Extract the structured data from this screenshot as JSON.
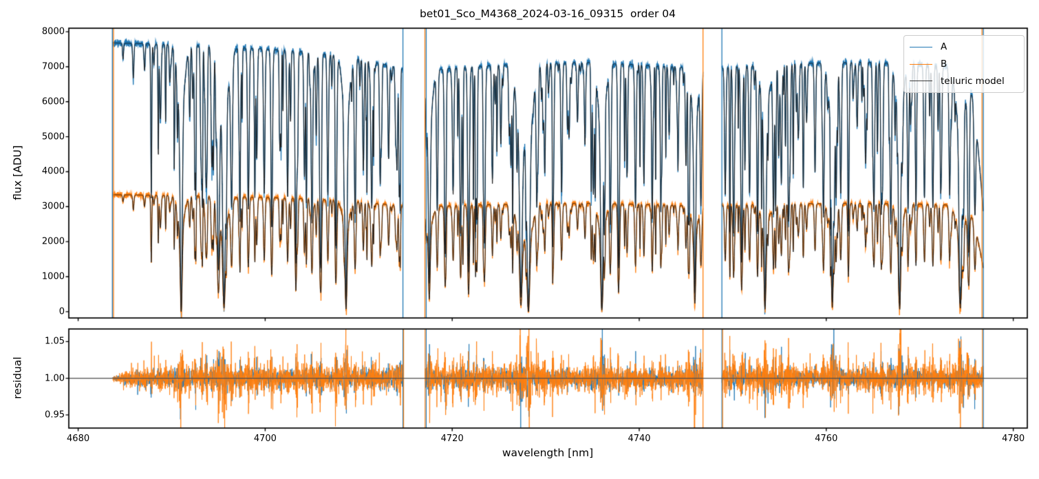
{
  "title": "bet01_Sco_M4368_2024-03-16_09315  order 04",
  "xlabel": "wavelength [nm]",
  "colors": {
    "A": "#1f77b4",
    "B": "#ff7f0e",
    "telluric": "#3d3d3d",
    "axhline": "#4d4d4d",
    "spine": "#000000",
    "background": "#ffffff"
  },
  "legend": {
    "entries": [
      {
        "label": "A",
        "color": "A"
      },
      {
        "label": "B",
        "color": "B"
      },
      {
        "label": "telluric model",
        "color": "telluric"
      }
    ],
    "position": "upper right"
  },
  "chart_data": [
    {
      "type": "line",
      "panel": "flux",
      "ylabel": "flux [ADU]",
      "ylim": [
        -180,
        8100
      ],
      "xlim": [
        4679.0,
        4781.5
      ],
      "grid": false,
      "yticks": [
        {
          "v": 0,
          "label": "0"
        },
        {
          "v": 1000,
          "label": "1000"
        },
        {
          "v": 2000,
          "label": "2000"
        },
        {
          "v": 3000,
          "label": "3000"
        },
        {
          "v": 4000,
          "label": "4000"
        },
        {
          "v": 5000,
          "label": "5000"
        },
        {
          "v": 6000,
          "label": "6000"
        },
        {
          "v": 7000,
          "label": "7000"
        },
        {
          "v": 8000,
          "label": "8000"
        }
      ],
      "series": [
        {
          "name": "A",
          "color": "#1f77b4",
          "continuum_adu": 7650
        },
        {
          "name": "B",
          "color": "#ff7f0e",
          "continuum_adu": 3320
        },
        {
          "name": "telluric model",
          "color": "#3d3d3d"
        }
      ],
      "segments": [
        {
          "start": 4683.7,
          "end": 4714.73
        },
        {
          "start": 4717.1,
          "end": 4746.82
        },
        {
          "start": 4748.84,
          "end": 4776.8
        }
      ],
      "continuum_A": [
        [
          4683.7,
          7680
        ],
        [
          4687,
          7660
        ],
        [
          4690,
          7630
        ],
        [
          4693,
          7600
        ],
        [
          4696,
          7560
        ],
        [
          4699,
          7520
        ],
        [
          4702,
          7470
        ],
        [
          4705,
          7400
        ],
        [
          4708,
          7310
        ],
        [
          4711,
          7170
        ],
        [
          4713.5,
          7020
        ],
        [
          4714.8,
          6930
        ],
        [
          4717.0,
          6880
        ],
        [
          4720,
          6960
        ],
        [
          4724,
          7030
        ],
        [
          4728,
          7080
        ],
        [
          4732,
          7110
        ],
        [
          4735,
          7130
        ],
        [
          4738,
          7080
        ],
        [
          4741,
          7030
        ],
        [
          4744,
          6990
        ],
        [
          4746.9,
          6950
        ],
        [
          4748.7,
          6970
        ],
        [
          4752,
          7030
        ],
        [
          4756,
          7080
        ],
        [
          4760,
          7110
        ],
        [
          4764,
          7130
        ],
        [
          4767,
          7100
        ],
        [
          4770,
          7060
        ],
        [
          4773,
          7010
        ],
        [
          4774.8,
          6860
        ],
        [
          4775.6,
          6200
        ],
        [
          4776.2,
          4800
        ],
        [
          4776.8,
          2850
        ]
      ],
      "b_to_a_ratio": 0.435,
      "telluric_lines": [
        [
          4684.8,
          0.06,
          0.08
        ],
        [
          4685.9,
          0.13,
          0.09
        ],
        [
          4687.1,
          0.1,
          0.09
        ],
        [
          4688.1,
          0.08,
          0.08
        ],
        [
          4688.8,
          0.28,
          0.11
        ],
        [
          4689.8,
          0.14,
          0.09
        ],
        [
          4691.02,
          1.0,
          0.15
        ],
        [
          4691.9,
          0.18,
          0.09
        ],
        [
          4693.2,
          0.22,
          0.1
        ],
        [
          4694.3,
          0.45,
          0.12
        ],
        [
          4695.0,
          0.82,
          0.17
        ],
        [
          4695.6,
          0.96,
          0.2
        ],
        [
          4696.4,
          0.55,
          0.14
        ],
        [
          4697.3,
          0.48,
          0.11
        ],
        [
          4698.2,
          0.6,
          0.12
        ],
        [
          4699.1,
          0.42,
          0.1
        ],
        [
          4699.9,
          0.55,
          0.11
        ],
        [
          4700.7,
          0.68,
          0.12
        ],
        [
          4701.6,
          0.38,
          0.1
        ],
        [
          4702.4,
          0.56,
          0.11
        ],
        [
          4703.3,
          0.62,
          0.12
        ],
        [
          4704.2,
          0.48,
          0.1
        ],
        [
          4705.0,
          0.66,
          0.12
        ],
        [
          4705.9,
          0.78,
          0.13
        ],
        [
          4706.7,
          0.52,
          0.11
        ],
        [
          4707.6,
          0.58,
          0.11
        ],
        [
          4708.65,
          0.97,
          0.15
        ],
        [
          4709.6,
          0.52,
          0.11
        ],
        [
          4710.5,
          0.44,
          0.1
        ],
        [
          4711.4,
          0.58,
          0.11
        ],
        [
          4712.3,
          0.48,
          0.1
        ],
        [
          4713.2,
          0.38,
          0.1
        ],
        [
          4714.1,
          0.32,
          0.1
        ],
        [
          4717.55,
          0.85,
          0.14
        ],
        [
          4718.4,
          0.58,
          0.11
        ],
        [
          4719.25,
          0.74,
          0.12
        ],
        [
          4720.1,
          0.52,
          0.11
        ],
        [
          4720.9,
          0.68,
          0.12
        ],
        [
          4721.75,
          0.84,
          0.13
        ],
        [
          4722.6,
          0.58,
          0.11
        ],
        [
          4723.45,
          0.72,
          0.12
        ],
        [
          4724.3,
          0.48,
          0.1
        ],
        [
          4725.2,
          0.32,
          0.1
        ],
        [
          4726.1,
          0.28,
          0.1
        ],
        [
          4727.35,
          0.92,
          0.19
        ],
        [
          4728.15,
          1.0,
          0.21
        ],
        [
          4729.05,
          0.55,
          0.11
        ],
        [
          4729.9,
          0.44,
          0.1
        ],
        [
          4730.8,
          0.58,
          0.11
        ],
        [
          4731.7,
          0.52,
          0.11
        ],
        [
          4732.5,
          0.3,
          0.1
        ],
        [
          4733.4,
          0.24,
          0.1
        ],
        [
          4734.2,
          0.33,
          0.1
        ],
        [
          4735.1,
          0.52,
          0.11
        ],
        [
          4736.0,
          0.98,
          0.17
        ],
        [
          4736.9,
          0.52,
          0.11
        ],
        [
          4737.8,
          0.62,
          0.12
        ],
        [
          4738.7,
          0.44,
          0.1
        ],
        [
          4739.6,
          0.58,
          0.11
        ],
        [
          4740.5,
          0.48,
          0.1
        ],
        [
          4741.4,
          0.54,
          0.11
        ],
        [
          4742.3,
          0.38,
          0.1
        ],
        [
          4743.2,
          0.28,
          0.1
        ],
        [
          4744.1,
          0.24,
          0.1
        ],
        [
          4745.0,
          0.4,
          0.1
        ],
        [
          4745.95,
          0.9,
          0.14
        ],
        [
          4746.6,
          0.55,
          0.12
        ],
        [
          4749.2,
          0.52,
          0.11
        ],
        [
          4750.1,
          0.68,
          0.12
        ],
        [
          4750.95,
          0.8,
          0.13
        ],
        [
          4751.8,
          0.52,
          0.11
        ],
        [
          4752.65,
          0.58,
          0.11
        ],
        [
          4753.45,
          0.97,
          0.15
        ],
        [
          4754.35,
          0.58,
          0.11
        ],
        [
          4755.2,
          0.48,
          0.1
        ],
        [
          4756.1,
          0.38,
          0.1
        ],
        [
          4757.0,
          0.28,
          0.1
        ],
        [
          4757.9,
          0.24,
          0.1
        ],
        [
          4758.8,
          0.44,
          0.1
        ],
        [
          4759.7,
          0.62,
          0.12
        ],
        [
          4760.65,
          0.95,
          0.15
        ],
        [
          4761.55,
          0.52,
          0.11
        ],
        [
          4762.4,
          0.32,
          0.1
        ],
        [
          4763.3,
          0.24,
          0.1
        ],
        [
          4764.2,
          0.38,
          0.1
        ],
        [
          4765.1,
          0.58,
          0.11
        ],
        [
          4766.0,
          0.52,
          0.11
        ],
        [
          4766.9,
          0.64,
          0.12
        ],
        [
          4767.85,
          0.97,
          0.15
        ],
        [
          4768.75,
          0.58,
          0.11
        ],
        [
          4769.6,
          0.48,
          0.1
        ],
        [
          4770.5,
          0.54,
          0.11
        ],
        [
          4771.4,
          0.58,
          0.11
        ],
        [
          4772.3,
          0.44,
          0.1
        ],
        [
          4773.2,
          0.52,
          0.11
        ],
        [
          4774.35,
          0.95,
          0.19
        ],
        [
          4775.2,
          0.68,
          0.13
        ],
        [
          4775.9,
          0.5,
          0.12
        ]
      ],
      "filler_lines": {
        "seed": 20240316,
        "per_segment": 72,
        "ranges": [
          [
            4687.5,
            4714.5
          ],
          [
            4717.2,
            4746.4
          ],
          [
            4748.9,
            4775.9
          ]
        ],
        "depth_max": 0.55,
        "width_range": [
          0.04,
          0.09
        ]
      },
      "edge_spikes": [
        {
          "w": 4683.66,
          "series": "A"
        },
        {
          "w": 4683.78,
          "series": "B"
        },
        {
          "w": 4714.73,
          "series": "A"
        },
        {
          "w": 4717.08,
          "series": "B"
        },
        {
          "w": 4717.22,
          "series": "A"
        },
        {
          "w": 4746.82,
          "series": "B"
        },
        {
          "w": 4748.84,
          "series": "A"
        },
        {
          "w": 4776.66,
          "series": "B"
        },
        {
          "w": 4776.8,
          "series": "A"
        }
      ],
      "noise": {
        "A": {
          "base": 0.006,
          "line_boost": 0.05,
          "add_base": 25,
          "add_boost": 110
        },
        "B": {
          "base": 0.0095,
          "line_boost": 0.06,
          "add_base": 20,
          "add_boost": 80
        }
      }
    },
    {
      "type": "line",
      "panel": "residual",
      "ylabel": "residual",
      "ylim": [
        0.9321,
        1.0672
      ],
      "xlim": [
        4679.0,
        4781.5
      ],
      "grid": false,
      "yticks": [
        {
          "v": 0.95,
          "label": "0.95"
        },
        {
          "v": 1.0,
          "label": "1.00"
        },
        {
          "v": 1.05,
          "label": "1.05"
        }
      ],
      "xticks": [
        {
          "v": 4680,
          "label": "4680"
        },
        {
          "v": 4700,
          "label": "4700"
        },
        {
          "v": 4720,
          "label": "4720"
        },
        {
          "v": 4740,
          "label": "4740"
        },
        {
          "v": 4760,
          "label": "4760"
        },
        {
          "v": 4780,
          "label": "4780"
        }
      ],
      "axhline": 1.0,
      "noise": {
        "A": {
          "base": 0.0055,
          "line_boost": 0.02
        },
        "B": {
          "base": 0.0085,
          "line_boost": 0.032
        }
      },
      "ramp_in_nm": 2.4,
      "edge_spikes": [
        {
          "w": 4714.73,
          "series": "A"
        },
        {
          "w": 4714.8,
          "series": "B"
        },
        {
          "w": 4717.1,
          "series": "B"
        },
        {
          "w": 4717.22,
          "series": "A"
        },
        {
          "w": 4746.82,
          "series": "B"
        },
        {
          "w": 4748.84,
          "series": "A"
        },
        {
          "w": 4748.92,
          "series": "B"
        },
        {
          "w": 4776.7,
          "series": "B"
        },
        {
          "w": 4776.8,
          "series": "A"
        }
      ]
    }
  ]
}
